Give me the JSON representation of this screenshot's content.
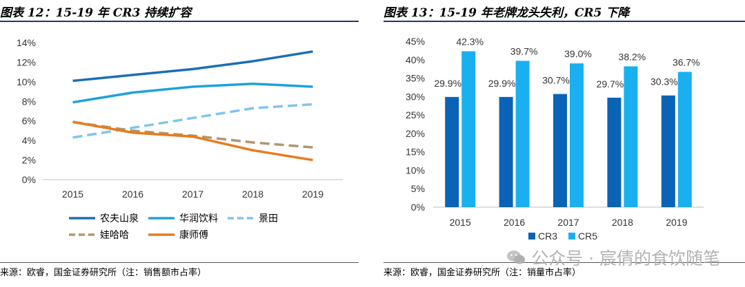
{
  "left": {
    "title": "图表 12：15-19 年 CR3 持续扩容",
    "source": "来源：欧睿，国金证券研究所（注：销售额市占率）",
    "chart_data": {
      "type": "line",
      "categories": [
        "2015",
        "2016",
        "2017",
        "2018",
        "2019"
      ],
      "ylim": [
        0,
        14
      ],
      "yticks": [
        "0%",
        "2%",
        "4%",
        "6%",
        "8%",
        "10%",
        "12%",
        "14%"
      ],
      "legend_position": "bottom",
      "grid": false,
      "series": [
        {
          "name": "农夫山泉",
          "values": [
            10.1,
            10.7,
            11.3,
            12.1,
            13.1
          ],
          "color": "#1a6fb5",
          "dash": "solid"
        },
        {
          "name": "华润饮料",
          "values": [
            7.9,
            8.9,
            9.5,
            9.8,
            9.5
          ],
          "color": "#1ea0e0",
          "dash": "solid"
        },
        {
          "name": "景田",
          "values": [
            4.3,
            5.3,
            6.3,
            7.3,
            7.7
          ],
          "color": "#7fc4ec",
          "dash": "dash"
        },
        {
          "name": "娃哈哈",
          "values": [
            5.9,
            5.0,
            4.5,
            3.8,
            3.3
          ],
          "color": "#b0966b",
          "dash": "dash"
        },
        {
          "name": "康师傅",
          "values": [
            5.9,
            4.8,
            4.4,
            3.0,
            2.0
          ],
          "color": "#e87b1d",
          "dash": "solid"
        }
      ]
    }
  },
  "right": {
    "title": "图表 13：15-19 年老牌龙头失利，CR5 下降",
    "source": "来源：欧睿，国金证券研究所（注：销量市占率）",
    "chart_data": {
      "type": "bar",
      "categories": [
        "2015",
        "2016",
        "2017",
        "2018",
        "2019"
      ],
      "ylim": [
        0,
        45
      ],
      "yticks": [
        "0%",
        "5%",
        "10%",
        "15%",
        "20%",
        "25%",
        "30%",
        "35%",
        "40%",
        "45%"
      ],
      "legend_position": "bottom",
      "grid": false,
      "series": [
        {
          "name": "CR3",
          "values": [
            29.9,
            29.9,
            30.7,
            29.7,
            30.3
          ],
          "labels": [
            "29.9%",
            "29.9%",
            "30.7%",
            "29.7%",
            "30.3%"
          ],
          "color": "#0a63b5"
        },
        {
          "name": "CR5",
          "values": [
            42.3,
            39.7,
            39.0,
            38.2,
            36.7
          ],
          "labels": [
            "42.3%",
            "39.7%",
            "39.0%",
            "38.2%",
            "36.7%"
          ],
          "color": "#1ab0ef"
        }
      ]
    }
  },
  "watermark": {
    "text": "公众号 · 宸倩的食饮随笔",
    "icon": "wechat-icon"
  }
}
